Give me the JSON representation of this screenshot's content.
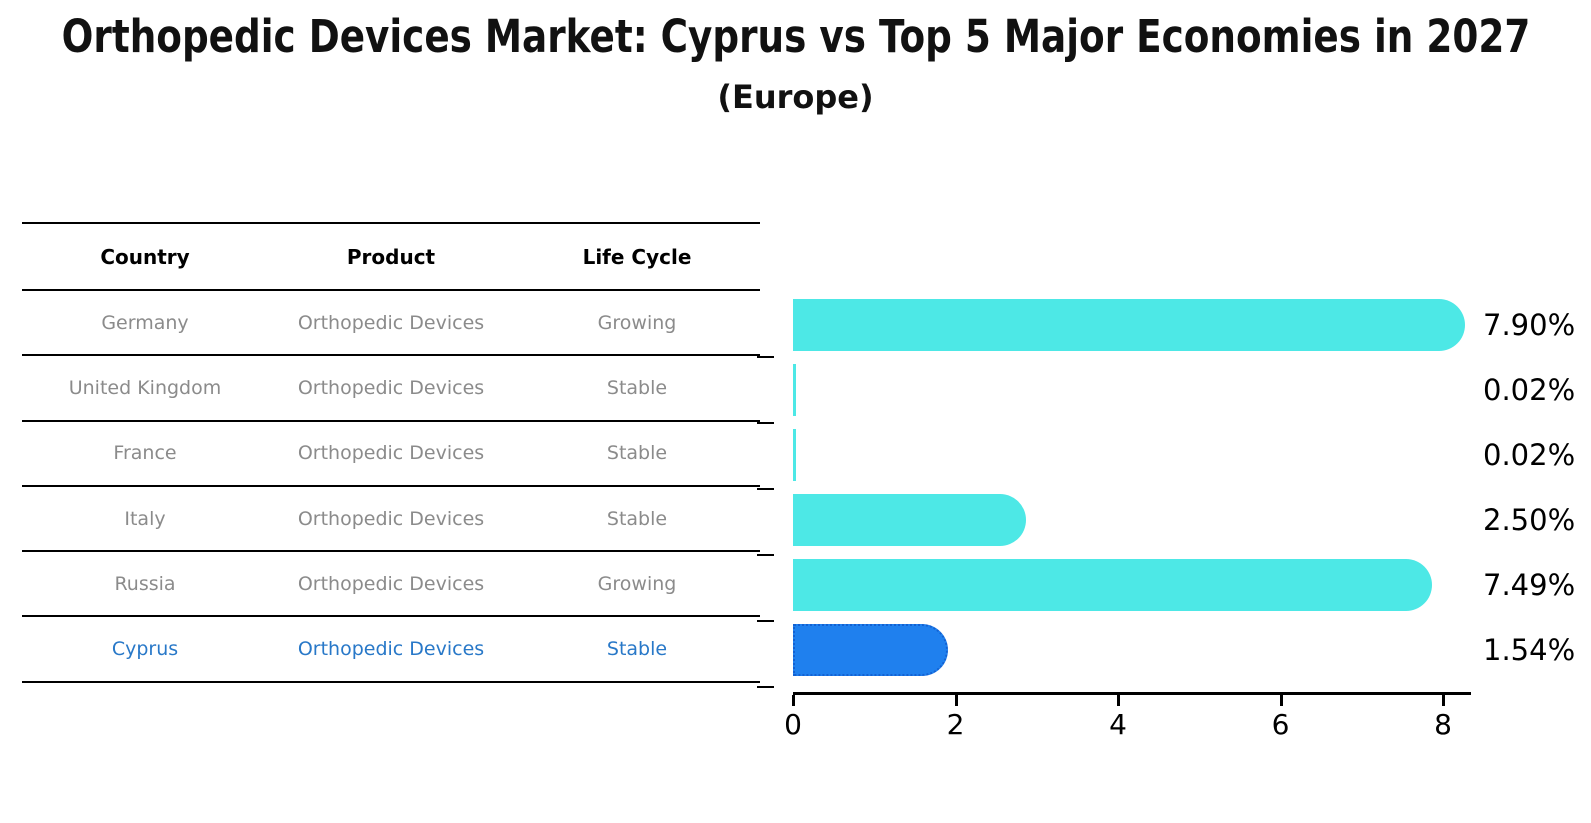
{
  "title": "Orthopedic Devices Market: Cyprus vs Top 5 Major Economies in 2027",
  "subtitle": "(Europe)",
  "table": {
    "headers": [
      "Country",
      "Product",
      "Life Cycle"
    ],
    "rows": [
      {
        "country": "Germany",
        "product": "Orthopedic Devices",
        "life_cycle": "Growing",
        "highlight": false
      },
      {
        "country": "United Kingdom",
        "product": "Orthopedic Devices",
        "life_cycle": "Stable",
        "highlight": false
      },
      {
        "country": "France",
        "product": "Orthopedic Devices",
        "life_cycle": "Stable",
        "highlight": false
      },
      {
        "country": "Italy",
        "product": "Orthopedic Devices",
        "life_cycle": "Stable",
        "highlight": false
      },
      {
        "country": "Russia",
        "product": "Orthopedic Devices",
        "life_cycle": "Growing",
        "highlight": false
      },
      {
        "country": "Cyprus",
        "product": "Orthopedic Devices",
        "life_cycle": "Stable",
        "highlight": true
      }
    ]
  },
  "chart_data": {
    "type": "bar",
    "orientation": "horizontal",
    "title": "Orthopedic Devices Market: Cyprus vs Top 5 Major Economies in 2027 (Europe)",
    "categories": [
      "Germany",
      "United Kingdom",
      "France",
      "Italy",
      "Russia",
      "Cyprus"
    ],
    "values": [
      7.9,
      0.02,
      0.02,
      2.5,
      7.49,
      1.54
    ],
    "value_labels": [
      "7.90%",
      "0.02%",
      "0.02%",
      "2.50%",
      "7.49%",
      "1.54%"
    ],
    "x_ticks": [
      0,
      2,
      4,
      6,
      8
    ],
    "xlim": [
      0,
      8.35
    ],
    "grid": false,
    "legend": "none",
    "highlight_index": 5,
    "colors": {
      "bar": "#4de8e6",
      "highlight_bar": "#1f80ee",
      "highlight_border": "#1361d2",
      "text": "#000000",
      "table_text": "#8b8b8b",
      "highlight_text": "#2878c8"
    }
  }
}
